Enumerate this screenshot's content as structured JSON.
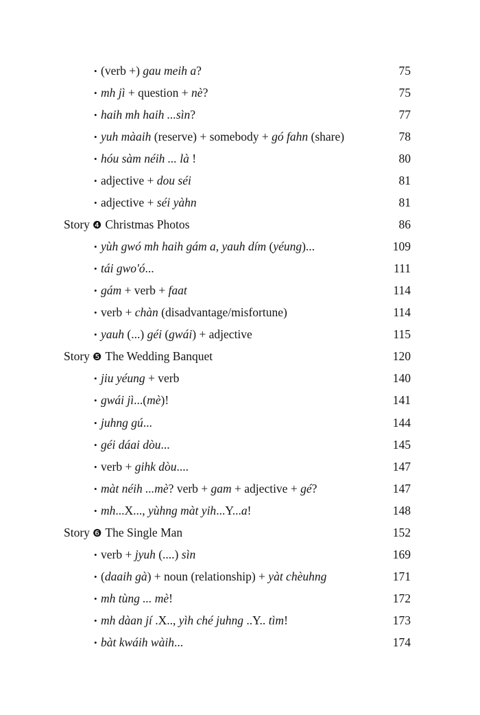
{
  "bullet": "•",
  "entries": [
    {
      "type": "item",
      "page": "75",
      "segments": [
        {
          "t": "(verb +) "
        },
        {
          "t": "gau meih a",
          "i": true
        },
        {
          "t": "?"
        }
      ]
    },
    {
      "type": "item",
      "page": "75",
      "segments": [
        {
          "t": "mh jì",
          "i": true
        },
        {
          "t": " + question + "
        },
        {
          "t": "nè",
          "i": true
        },
        {
          "t": "?"
        }
      ]
    },
    {
      "type": "item",
      "page": "77",
      "segments": [
        {
          "t": "haih mh haih ...sìn",
          "i": true
        },
        {
          "t": "?"
        }
      ]
    },
    {
      "type": "item",
      "page": "78",
      "segments": [
        {
          "t": "yuh màaih",
          "i": true
        },
        {
          "t": " (reserve) + somebody + "
        },
        {
          "t": "gó fahn",
          "i": true
        },
        {
          "t": " (share)"
        }
      ]
    },
    {
      "type": "item",
      "page": "80",
      "segments": [
        {
          "t": "hóu sàm néih ... là",
          "i": true
        },
        {
          "t": " !"
        }
      ]
    },
    {
      "type": "item",
      "page": "81",
      "segments": [
        {
          "t": "adjective + "
        },
        {
          "t": "dou séi",
          "i": true
        }
      ]
    },
    {
      "type": "item",
      "page": "81",
      "segments": [
        {
          "t": "adjective + "
        },
        {
          "t": "séi yàhn",
          "i": true
        }
      ]
    },
    {
      "type": "story",
      "label": "Story",
      "number": "❹",
      "title": "Christmas Photos",
      "page": "86"
    },
    {
      "type": "item",
      "page": "109",
      "segments": [
        {
          "t": "yùh gwó mh haih gám a, yauh dím",
          "i": true
        },
        {
          "t": " ("
        },
        {
          "t": "yéung",
          "i": true
        },
        {
          "t": ")..."
        }
      ]
    },
    {
      "type": "item",
      "page": "111",
      "segments": [
        {
          "t": "tái gwo'ó",
          "i": true
        },
        {
          "t": "..."
        }
      ]
    },
    {
      "type": "item",
      "page": "114",
      "segments": [
        {
          "t": "gám",
          "i": true
        },
        {
          "t": " + verb + "
        },
        {
          "t": "faat",
          "i": true
        }
      ]
    },
    {
      "type": "item",
      "page": "114",
      "segments": [
        {
          "t": "verb + "
        },
        {
          "t": "chàn",
          "i": true
        },
        {
          "t": " (disadvantage/misfortune)"
        }
      ]
    },
    {
      "type": "item",
      "page": "115",
      "segments": [
        {
          "t": "yauh",
          "i": true
        },
        {
          "t": " (...) "
        },
        {
          "t": "géi",
          "i": true
        },
        {
          "t": " ("
        },
        {
          "t": "gwái",
          "i": true
        },
        {
          "t": ") + adjective"
        }
      ]
    },
    {
      "type": "story",
      "label": "Story",
      "number": "❺",
      "title": "The Wedding Banquet",
      "page": "120"
    },
    {
      "type": "item",
      "page": "140",
      "segments": [
        {
          "t": "jiu yéung",
          "i": true
        },
        {
          "t": " + verb"
        }
      ]
    },
    {
      "type": "item",
      "page": "141",
      "segments": [
        {
          "t": "gwái jì",
          "i": true
        },
        {
          "t": "...("
        },
        {
          "t": "mè",
          "i": true
        },
        {
          "t": ")!"
        }
      ]
    },
    {
      "type": "item",
      "page": "144",
      "segments": [
        {
          "t": "juhng gú",
          "i": true
        },
        {
          "t": "..."
        }
      ]
    },
    {
      "type": "item",
      "page": "145",
      "segments": [
        {
          "t": "géi dáai dòu",
          "i": true
        },
        {
          "t": "..."
        }
      ]
    },
    {
      "type": "item",
      "page": "147",
      "segments": [
        {
          "t": "verb + "
        },
        {
          "t": "gihk dòu",
          "i": true
        },
        {
          "t": "...."
        }
      ]
    },
    {
      "type": "item",
      "page": "147",
      "segments": [
        {
          "t": "màt néih ...mè",
          "i": true
        },
        {
          "t": "? verb + "
        },
        {
          "t": "gam",
          "i": true
        },
        {
          "t": " + adjective + "
        },
        {
          "t": "gé",
          "i": true
        },
        {
          "t": "?"
        }
      ]
    },
    {
      "type": "item",
      "page": "148",
      "segments": [
        {
          "t": "mh",
          "i": true
        },
        {
          "t": "...X..., "
        },
        {
          "t": "yùhng màt yih",
          "i": true
        },
        {
          "t": "...Y..."
        },
        {
          "t": "a",
          "i": true
        },
        {
          "t": "!"
        }
      ]
    },
    {
      "type": "story",
      "label": "Story",
      "number": "❻",
      "title": "The Single Man",
      "page": "152"
    },
    {
      "type": "item",
      "page": "169",
      "segments": [
        {
          "t": "verb + "
        },
        {
          "t": "jyuh",
          "i": true
        },
        {
          "t": " (....) "
        },
        {
          "t": "sìn",
          "i": true
        }
      ]
    },
    {
      "type": "item",
      "page": "171",
      "segments": [
        {
          "t": "("
        },
        {
          "t": "daaih gà",
          "i": true
        },
        {
          "t": ") + noun (relationship) + "
        },
        {
          "t": "yàt chèuhng",
          "i": true
        }
      ]
    },
    {
      "type": "item",
      "page": "172",
      "segments": [
        {
          "t": "mh tùng ... mè",
          "i": true
        },
        {
          "t": "!"
        }
      ]
    },
    {
      "type": "item",
      "page": "173",
      "segments": [
        {
          "t": "mh dàan jí",
          "i": true
        },
        {
          "t": " .X.., "
        },
        {
          "t": "yìh ché juhng",
          "i": true
        },
        {
          "t": " ..Y.. "
        },
        {
          "t": "tìm",
          "i": true
        },
        {
          "t": "!"
        }
      ]
    },
    {
      "type": "item",
      "page": "174",
      "segments": [
        {
          "t": "bàt kwáih wàih",
          "i": true
        },
        {
          "t": "..."
        }
      ]
    }
  ]
}
